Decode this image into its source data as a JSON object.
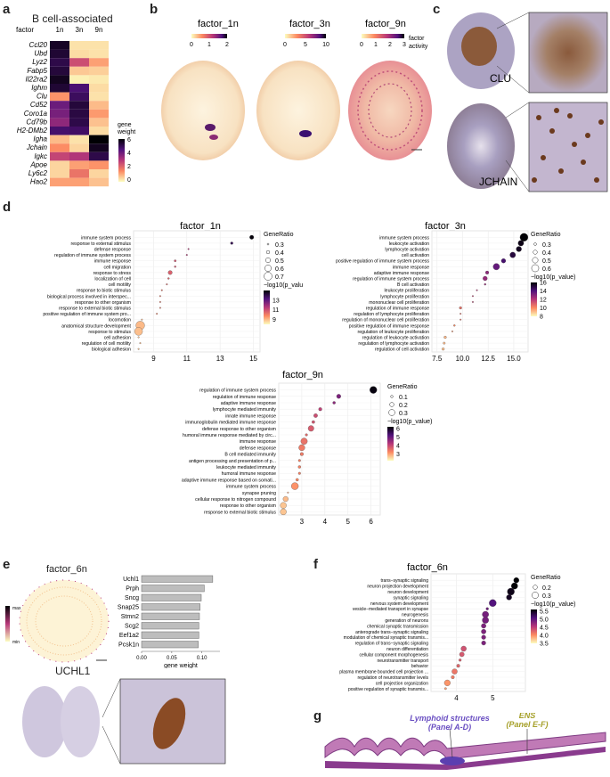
{
  "panel_labels": {
    "a": "a",
    "b": "b",
    "c": "c",
    "d": "d",
    "e": "e",
    "f": "f",
    "g": "g"
  },
  "panel_a": {
    "title": "B cell-associated",
    "col_header": "factor",
    "columns": [
      "1n",
      "3n",
      "9n"
    ],
    "rows": [
      "Ccl20",
      "Ubd",
      "Lyz2",
      "Fabp5",
      "Il22ra2",
      "Ighm",
      "Clu",
      "Cd52",
      "Coro1a",
      "Cd79b",
      "H2-DMb2",
      "Igha",
      "Jchain",
      "Igkc",
      "Apoe",
      "Ly6c2",
      "Hao2"
    ],
    "values": [
      [
        6.5,
        0.4,
        0.4
      ],
      [
        6.3,
        0.5,
        0.4
      ],
      [
        6.0,
        3.0,
        1.4
      ],
      [
        6.2,
        0.8,
        0.7
      ],
      [
        6.6,
        0.2,
        0.3
      ],
      [
        6.3,
        5.4,
        0.5
      ],
      [
        1.6,
        5.7,
        0.4
      ],
      [
        4.8,
        6.2,
        1.0
      ],
      [
        4.6,
        6.1,
        1.5
      ],
      [
        4.2,
        6.0,
        0.9
      ],
      [
        5.5,
        5.6,
        0.5
      ],
      [
        1.0,
        0.4,
        7.0
      ],
      [
        1.7,
        0.6,
        6.6
      ],
      [
        3.2,
        3.6,
        6.0
      ],
      [
        0.6,
        1.4,
        1.6
      ],
      [
        0.6,
        2.2,
        0.6
      ],
      [
        1.4,
        1.4,
        0.9
      ]
    ],
    "legend_title": "gene weight",
    "legend_ticks": [
      "0",
      "2",
      "4",
      "6"
    ],
    "cmap": [
      "#fcfdbf",
      "#fc8961",
      "#b73779",
      "#51127c",
      "#000004"
    ]
  },
  "panel_b": {
    "maps": [
      {
        "title": "factor_1n",
        "ticks": [
          "0",
          "1",
          "2"
        ]
      },
      {
        "title": "factor_3n",
        "ticks": [
          "0",
          "5",
          "10"
        ]
      },
      {
        "title": "factor_9n",
        "ticks": [
          "0",
          "1",
          "2",
          "3"
        ]
      }
    ],
    "legend_note": "factor activity"
  },
  "panel_c": {
    "labels": [
      "CLU",
      "JCHAIN"
    ]
  },
  "panel_d": {
    "factor_1n": {
      "title": "factor_1n",
      "chart_data": {
        "type": "scatter",
        "terms": [
          "immune system process",
          "response to external stimulus",
          "defense response",
          "regulation of immune system process",
          "immune response",
          "cell migration",
          "response to stress",
          "localization of cell",
          "cell motility",
          "response to biotic stimulus",
          "biological process involved in interspec...",
          "response to other organism",
          "response to external biotic stimulus",
          "positive regulation of immune system pro...",
          "locomotion",
          "anatomical structure development",
          "response to stimulus",
          "cell adhesion",
          "regulation of cell motility",
          "biological adhesion"
        ],
        "x": [
          14.9,
          13.7,
          11.1,
          11.0,
          10.3,
          10.3,
          10.0,
          9.9,
          9.8,
          9.5,
          9.4,
          9.4,
          9.4,
          9.2,
          8.3,
          8.2,
          8.1,
          8.1,
          8.2,
          8.1
        ],
        "gene_ratio": [
          0.45,
          0.35,
          0.28,
          0.28,
          0.32,
          0.3,
          0.45,
          0.3,
          0.28,
          0.28,
          0.27,
          0.27,
          0.27,
          0.22,
          0.27,
          0.75,
          0.7,
          0.28,
          0.22,
          0.28
        ],
        "log10p": [
          14.9,
          13.7,
          11.1,
          11.0,
          10.3,
          10.3,
          10.0,
          9.9,
          9.8,
          9.5,
          9.4,
          9.4,
          9.4,
          9.2,
          8.3,
          8.2,
          8.1,
          8.1,
          8.2,
          8.1
        ],
        "xticks": [
          "9",
          "11",
          "13",
          "15"
        ],
        "xlim": [
          7.8,
          15.4
        ],
        "size_title": "GeneRatio",
        "size_ticks": [
          "0.3",
          "0.4",
          "0.5",
          "0.6",
          "0.7"
        ],
        "color_title": "−log10(p_value)",
        "color_ticks": [
          "13",
          "11",
          "9"
        ],
        "clim": [
          8,
          15
        ]
      }
    },
    "factor_3n": {
      "title": "factor_3n",
      "chart_data": {
        "type": "scatter",
        "terms": [
          "immune system process",
          "leukocyte activation",
          "lymphocyte activation",
          "cell activation",
          "positive regulation of immune system process",
          "immune response",
          "adaptive immune response",
          "regulation of immune system process",
          "B cell activation",
          "leukocyte proliferation",
          "lymphocyte proliferation",
          "mononuclear cell proliferation",
          "regulation of immune response",
          "regulation of lymphocyte proliferation",
          "regulation of mononuclear cell proliferation",
          "positive regulation of immune response",
          "regulation of leukocyte proliferation",
          "regulation of leukocyte activation",
          "regulation of lymphocyte activation",
          "regulation of cell activation"
        ],
        "x": [
          16.0,
          15.7,
          15.5,
          14.9,
          14.0,
          13.3,
          12.4,
          12.2,
          12.2,
          11.4,
          11.0,
          11.0,
          9.8,
          9.8,
          9.8,
          9.2,
          9.0,
          8.3,
          8.2,
          8.1
        ],
        "gene_ratio": [
          0.65,
          0.5,
          0.48,
          0.5,
          0.42,
          0.55,
          0.35,
          0.42,
          0.25,
          0.22,
          0.2,
          0.2,
          0.3,
          0.2,
          0.2,
          0.25,
          0.2,
          0.3,
          0.28,
          0.3
        ],
        "log10p": [
          16.0,
          15.7,
          15.5,
          14.9,
          14.0,
          13.3,
          12.4,
          12.2,
          12.2,
          11.4,
          11.0,
          11.0,
          9.8,
          9.8,
          9.8,
          9.2,
          9.0,
          8.3,
          8.2,
          8.1
        ],
        "xticks": [
          "7.5",
          "10.0",
          "12.5",
          "15.0"
        ],
        "xlim": [
          7.0,
          16.4
        ],
        "size_title": "GeneRatio",
        "size_ticks": [
          "0.3",
          "0.4",
          "0.5",
          "0.6"
        ],
        "color_title": "−log10(p_value)",
        "color_ticks": [
          "16",
          "14",
          "12",
          "10",
          "8"
        ],
        "clim": [
          8,
          16
        ]
      }
    },
    "factor_9n": {
      "title": "factor_9n",
      "chart_data": {
        "type": "scatter",
        "terms": [
          "regulation of immune system process",
          "regulation of immune response",
          "adaptive immune response",
          "lymphocyte mediated immunity",
          "innate immune response",
          "immunoglobulin mediated immune response",
          "defense response to other organism",
          "humoral immune response mediated by circ...",
          "immune response",
          "defense response",
          "B cell mediated immunity",
          "antigen processing and presentation of p...",
          "leukocyte mediated immunity",
          "humoral immune response",
          "adaptive immune response based on somati...",
          "immune system process",
          "synapse pruning",
          "cellular response to nitrogen compound",
          "response to other organism",
          "response to external biotic stimulus"
        ],
        "x": [
          6.1,
          4.6,
          4.4,
          3.8,
          3.6,
          3.5,
          3.4,
          3.2,
          3.1,
          3.0,
          3.0,
          2.9,
          2.9,
          2.9,
          2.8,
          2.7,
          2.4,
          2.3,
          2.2,
          2.2
        ],
        "gene_ratio": [
          0.35,
          0.2,
          0.12,
          0.15,
          0.18,
          0.13,
          0.28,
          0.1,
          0.32,
          0.3,
          0.15,
          0.1,
          0.12,
          0.1,
          0.12,
          0.35,
          0.05,
          0.25,
          0.3,
          0.3
        ],
        "log10p": [
          6.1,
          4.6,
          4.4,
          3.8,
          3.6,
          3.5,
          3.4,
          3.2,
          3.1,
          3.0,
          3.0,
          2.9,
          2.9,
          2.9,
          2.8,
          2.7,
          2.4,
          2.3,
          2.2,
          2.2
        ],
        "xticks": [
          "3",
          "4",
          "5",
          "6"
        ],
        "xlim": [
          2.0,
          6.4
        ],
        "size_title": "GeneRatio",
        "size_ticks": [
          "0.1",
          "0.2",
          "0.3"
        ],
        "color_title": "−log10(p_value)",
        "color_ticks": [
          "6",
          "5",
          "4",
          "3"
        ],
        "clim": [
          2.2,
          6.2
        ]
      }
    }
  },
  "panel_e": {
    "map_title": "factor_6n",
    "legend_max": "max",
    "legend_min": "min",
    "ihc_label": "UCHL1",
    "chart_data": {
      "type": "bar",
      "orientation": "horizontal",
      "categories": [
        "Uchl1",
        "Prph",
        "Sncg",
        "Snap25",
        "Stmn2",
        "Scg2",
        "Eef1a2",
        "Pcsk1n"
      ],
      "values": [
        0.118,
        0.104,
        0.099,
        0.097,
        0.096,
        0.095,
        0.095,
        0.094
      ],
      "xticks": [
        "0.00",
        "0.05",
        "0.10"
      ],
      "xlim": [
        0,
        0.13
      ],
      "xlabel": "gene weight"
    }
  },
  "panel_f": {
    "title": "factor_6n",
    "chart_data": {
      "type": "scatter",
      "terms": [
        "trans−synaptic signaling",
        "neuron projection development",
        "neuron development",
        "synaptic signaling",
        "nervous system development",
        "vesicle−mediated transport in synapse",
        "neurogenesis",
        "generation of neurons",
        "chemical synaptic transmission",
        "anterograde trans−synaptic signaling",
        "modulation of chemical synaptic transmis...",
        "regulation of trans−synaptic signaling",
        "neuron differentiation",
        "cellular component morphogenesis",
        "neurotransmitter transport",
        "behavior",
        "plasma membrane bounded cell projection ...",
        "regulation of neurotransmitter levels",
        "cell projection organization",
        "positive regulation of synaptic transmis..."
      ],
      "x": [
        5.65,
        5.6,
        5.5,
        5.45,
        5.0,
        4.85,
        4.8,
        4.8,
        4.75,
        4.75,
        4.75,
        4.75,
        4.2,
        4.15,
        4.1,
        4.05,
        3.95,
        3.9,
        3.75,
        3.7
      ],
      "gene_ratio": [
        0.25,
        0.3,
        0.33,
        0.25,
        0.33,
        0.12,
        0.3,
        0.3,
        0.22,
        0.22,
        0.2,
        0.2,
        0.25,
        0.22,
        0.12,
        0.15,
        0.25,
        0.15,
        0.28,
        0.1
      ],
      "log10p": [
        5.65,
        5.6,
        5.5,
        5.45,
        5.0,
        4.85,
        4.8,
        4.8,
        4.75,
        4.75,
        4.75,
        4.75,
        4.2,
        4.15,
        4.1,
        4.05,
        3.95,
        3.9,
        3.75,
        3.7
      ],
      "xticks": [
        "4",
        "5"
      ],
      "xlim": [
        3.3,
        5.9
      ],
      "size_title": "GeneRatio",
      "size_ticks": [
        "0.2",
        "0.3"
      ],
      "color_title": "−log10(p_value)",
      "color_ticks": [
        "5.5",
        "5.0",
        "4.5",
        "4.0",
        "3.5"
      ],
      "clim": [
        3.5,
        5.6
      ]
    }
  },
  "panel_g": {
    "lymphoid_line1": "Lymphoid structures",
    "lymphoid_line2": "(Panel A-D)",
    "ens_line1": "ENS",
    "ens_line2": "(Panel E-F)"
  }
}
